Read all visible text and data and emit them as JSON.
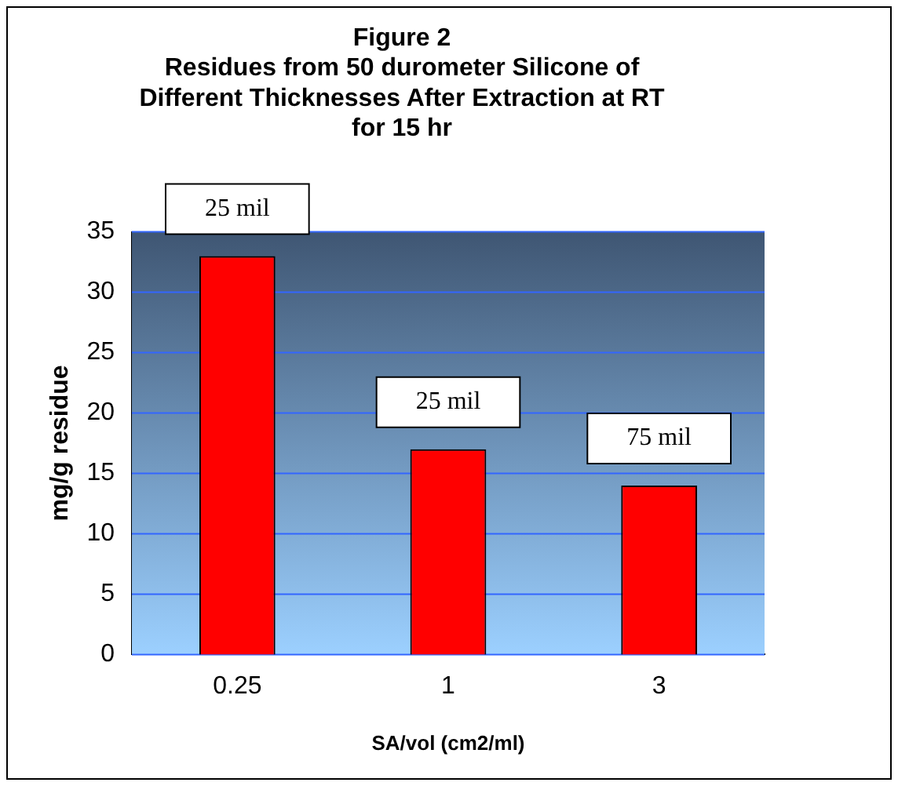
{
  "chart_data": {
    "type": "bar",
    "title": [
      "Figure 2",
      "Residues from 50 durometer Silicone of",
      "Different Thicknesses After Extraction at RT",
      "for 15 hr"
    ],
    "xlabel": "SA/vol (cm2/ml)",
    "ylabel": "mg/g residue",
    "categories": [
      "0.25",
      "1",
      "3"
    ],
    "values": [
      33,
      17,
      14
    ],
    "color": "#ff0000",
    "ylim": [
      0,
      35
    ],
    "yticks": [
      0,
      5,
      10,
      15,
      20,
      25,
      30,
      35
    ],
    "grid": "y",
    "legend": false,
    "annotations": [
      "25 mil",
      "25 mil",
      "75 mil"
    ]
  }
}
